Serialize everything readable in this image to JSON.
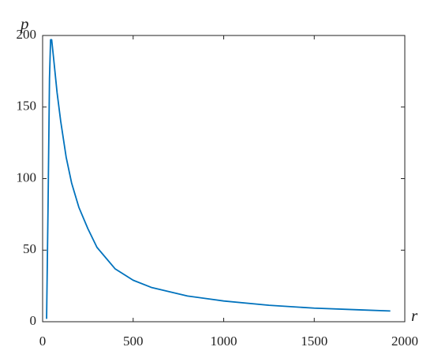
{
  "chart_data": {
    "type": "line",
    "xlabel": "r",
    "ylabel": "p",
    "x": [
      22,
      30,
      38,
      44,
      50,
      60,
      80,
      100,
      130,
      160,
      200,
      250,
      300,
      400,
      500,
      600,
      800,
      1000,
      1250,
      1500,
      1750,
      1920
    ],
    "series": [
      {
        "name": "p",
        "color": "#0072bd",
        "values": [
          2,
          80,
          170,
          197,
          197,
          185,
          160,
          140,
          115,
          97,
          80,
          65,
          52,
          37,
          29,
          24,
          18,
          14.5,
          11.5,
          9.5,
          8.3,
          7.5
        ]
      }
    ],
    "xlim": [
      0,
      2000
    ],
    "ylim": [
      0,
      200
    ],
    "xticks": [
      0,
      500,
      1000,
      1500,
      2000
    ],
    "yticks": [
      0,
      50,
      100,
      150,
      200
    ],
    "grid": false
  }
}
